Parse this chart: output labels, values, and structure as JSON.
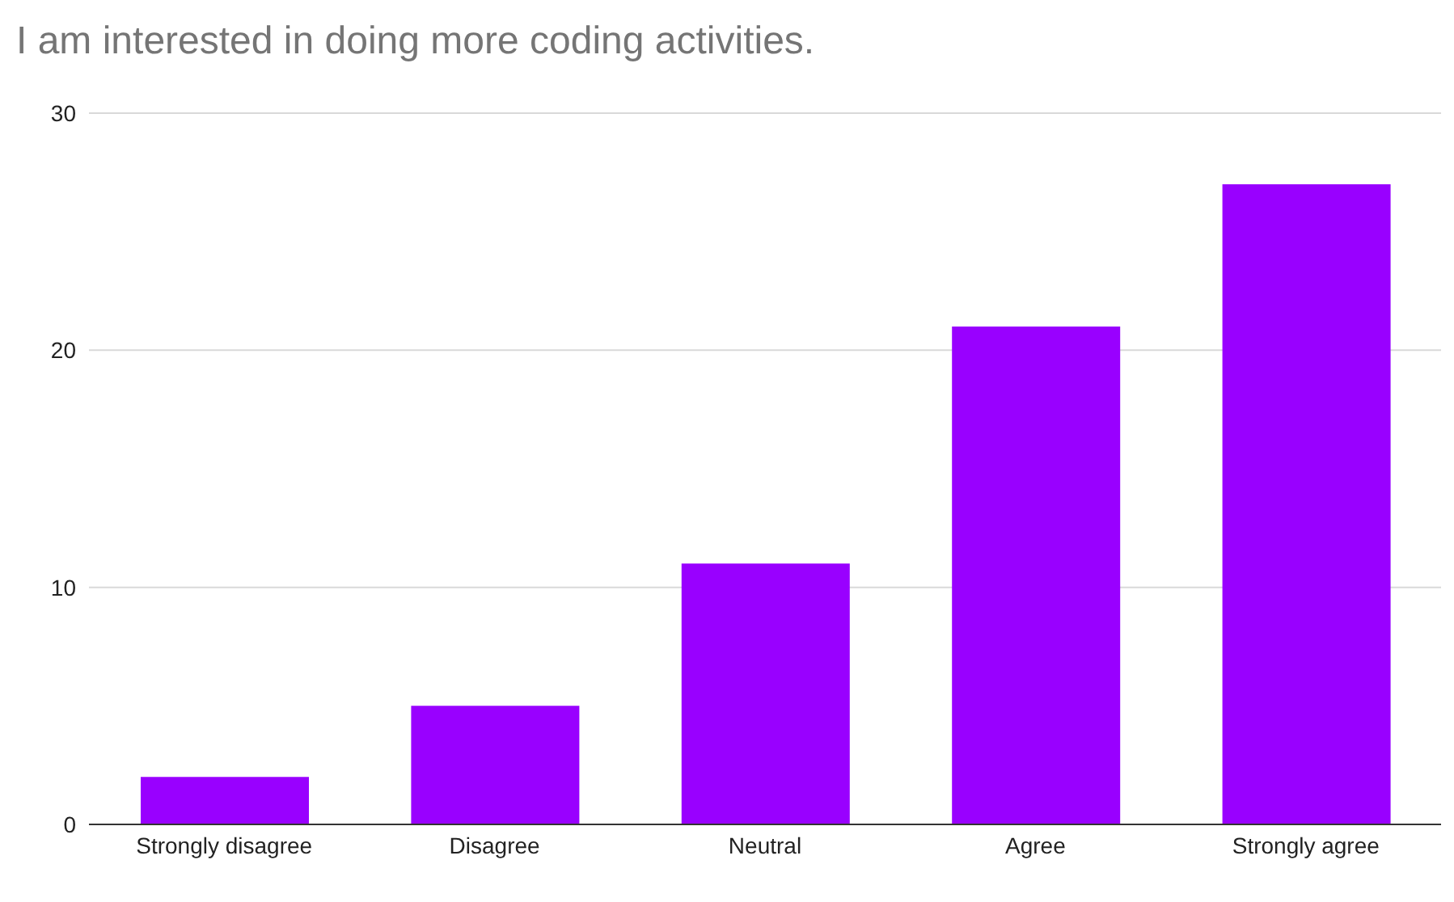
{
  "chart_data": {
    "type": "bar",
    "title": "I am interested in doing more coding activities.",
    "categories": [
      "Strongly disagree",
      "Disagree",
      "Neutral",
      "Agree",
      "Strongly agree"
    ],
    "values": [
      2,
      5,
      11,
      21,
      27
    ],
    "color": "#9900ff",
    "ylim": [
      0,
      30
    ],
    "yticks": [
      0,
      10,
      20,
      30
    ],
    "grid": "y"
  }
}
